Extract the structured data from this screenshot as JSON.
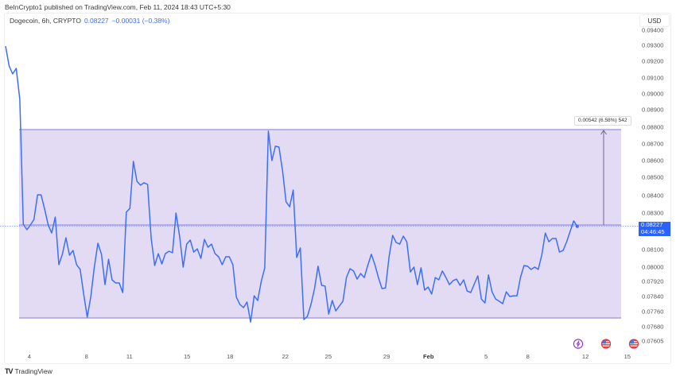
{
  "header": {
    "published": "BeInCrypto1 published on TradingView.com, Feb 11, 2024 18:43 UTC+5:30"
  },
  "legend": {
    "symbol": "Dogecoin, 6h, CRYPTO",
    "last": "0.08227",
    "change": "−0.00031 (−0.38%)"
  },
  "price_axis": {
    "currency": "USD",
    "ticks": [
      "0.09400",
      "0.09300",
      "0.09200",
      "0.09100",
      "0.09000",
      "0.08900",
      "0.08800",
      "0.08700",
      "0.08600",
      "0.08500",
      "0.08400",
      "0.08300",
      "0.08100",
      "0.08000",
      "0.07920",
      "0.07840",
      "0.07760",
      "0.07680",
      "0.07605"
    ],
    "last_price": "0.08227",
    "countdown": "04:46:45"
  },
  "time_axis": {
    "ticks": [
      {
        "label": "4",
        "index": 6.7,
        "bold": false
      },
      {
        "label": "8",
        "index": 22.8,
        "bold": false
      },
      {
        "label": "11",
        "index": 34.9,
        "bold": false
      },
      {
        "label": "15",
        "index": 51.1,
        "bold": false
      },
      {
        "label": "18",
        "index": 63.2,
        "bold": false
      },
      {
        "label": "22",
        "index": 78.8,
        "bold": false
      },
      {
        "label": "25",
        "index": 90.9,
        "bold": false
      },
      {
        "label": "29",
        "index": 107.3,
        "bold": false
      },
      {
        "label": "Feb",
        "index": 119.1,
        "bold": true
      },
      {
        "label": "5",
        "index": 135.3,
        "bold": false
      },
      {
        "label": "8",
        "index": 147.1,
        "bold": false
      },
      {
        "label": "12",
        "index": 163.3,
        "bold": false
      },
      {
        "label": "15",
        "index": 175.1,
        "bold": false
      }
    ]
  },
  "measure": {
    "label": "0.00542 (6.58%) 542"
  },
  "events": [
    {
      "icon": "lightning-icon",
      "index": 161.3
    },
    {
      "icon": "us-flag-icon",
      "index": 169.1
    },
    {
      "icon": "us-flag-icon",
      "index": 176.9
    }
  ],
  "footer": {
    "logo": "TV",
    "brand": "TradingView"
  },
  "colors": {
    "line": "#3d6ff5",
    "range_fill": "#e2dbf3",
    "range_border": "#9c8fda",
    "last_price_bg": "#2962ff",
    "legend_value": "#3f6ff2",
    "event_purple": "#a23bd1"
  },
  "chart_data": {
    "type": "line",
    "title": "Dogecoin, 6h, CRYPTO",
    "interval": "6h",
    "xlabel": "",
    "ylabel": "USD",
    "ylim": [
      0.07605,
      0.094
    ],
    "grid": false,
    "x_tick_labels": [
      "4",
      "8",
      "11",
      "15",
      "18",
      "22",
      "25",
      "29",
      "Feb",
      "5",
      "8",
      "12",
      "15"
    ],
    "last_value": 0.08227,
    "change": -0.00031,
    "change_pct": -0.38,
    "range_box": {
      "low": 0.0771,
      "mid": 0.08227,
      "high": 0.08769,
      "delta": 0.00542,
      "delta_pct": 6.58,
      "ticks": 542
    },
    "values": [
      0.09295,
      0.09171,
      0.09124,
      0.09157,
      0.08965,
      0.08239,
      0.08209,
      0.08235,
      0.08265,
      0.08404,
      0.08404,
      0.08323,
      0.08235,
      0.08191,
      0.08278,
      0.08014,
      0.08073,
      0.08165,
      0.08068,
      0.08095,
      0.08014,
      0.07987,
      0.07853,
      0.07731,
      0.0784,
      0.08,
      0.08135,
      0.08073,
      0.07903,
      0.08045,
      0.07929,
      0.07912,
      0.07912,
      0.07861,
      0.08305,
      0.08327,
      0.08595,
      0.08478,
      0.08457,
      0.0847,
      0.08461,
      0.08161,
      0.08009,
      0.08077,
      0.08018,
      0.08077,
      0.08091,
      0.08082,
      0.083,
      0.08174,
      0.08,
      0.0813,
      0.08152,
      0.08086,
      0.08104,
      0.0805,
      0.08156,
      0.08113,
      0.0813,
      0.08077,
      0.08059,
      0.08014,
      0.08059,
      0.08059,
      0.08014,
      0.07836,
      0.07798,
      0.07781,
      0.07811,
      0.07705,
      0.07844,
      0.07819,
      0.0792,
      0.07996,
      0.08776,
      0.086,
      0.08686,
      0.08681,
      0.08538,
      0.08364,
      0.08336,
      0.0843,
      0.08055,
      0.08109,
      0.07718,
      0.07735,
      0.07798,
      0.07882,
      0.08005,
      0.07899,
      0.07895,
      0.07747,
      0.07819,
      0.07764,
      0.0779,
      0.07815,
      0.07942,
      0.07991,
      0.07978,
      0.07933,
      0.07964,
      0.07942,
      0.08009,
      0.08073,
      0.08014,
      0.07942,
      0.07882,
      0.07886,
      0.08059,
      0.08178,
      0.08139,
      0.0813,
      0.08174,
      0.08143,
      0.07973,
      0.08,
      0.07903,
      0.07996,
      0.07874,
      0.0789,
      0.07853,
      0.07942,
      0.07929,
      0.07978,
      0.07942,
      0.07903,
      0.07924,
      0.07933,
      0.07899,
      0.07929,
      0.07869,
      0.07861,
      0.07907,
      0.07951,
      0.07827,
      0.07806,
      0.07956,
      0.07865,
      0.07827,
      0.07815,
      0.07802,
      0.07865,
      0.0784,
      0.07844,
      0.07844,
      0.07942,
      0.08009,
      0.08005,
      0.07987,
      0.08,
      0.07987,
      0.08068,
      0.08191,
      0.08143,
      0.08161,
      0.08161,
      0.08086,
      0.08095,
      0.08143,
      0.082,
      0.08257,
      0.08227
    ]
  }
}
